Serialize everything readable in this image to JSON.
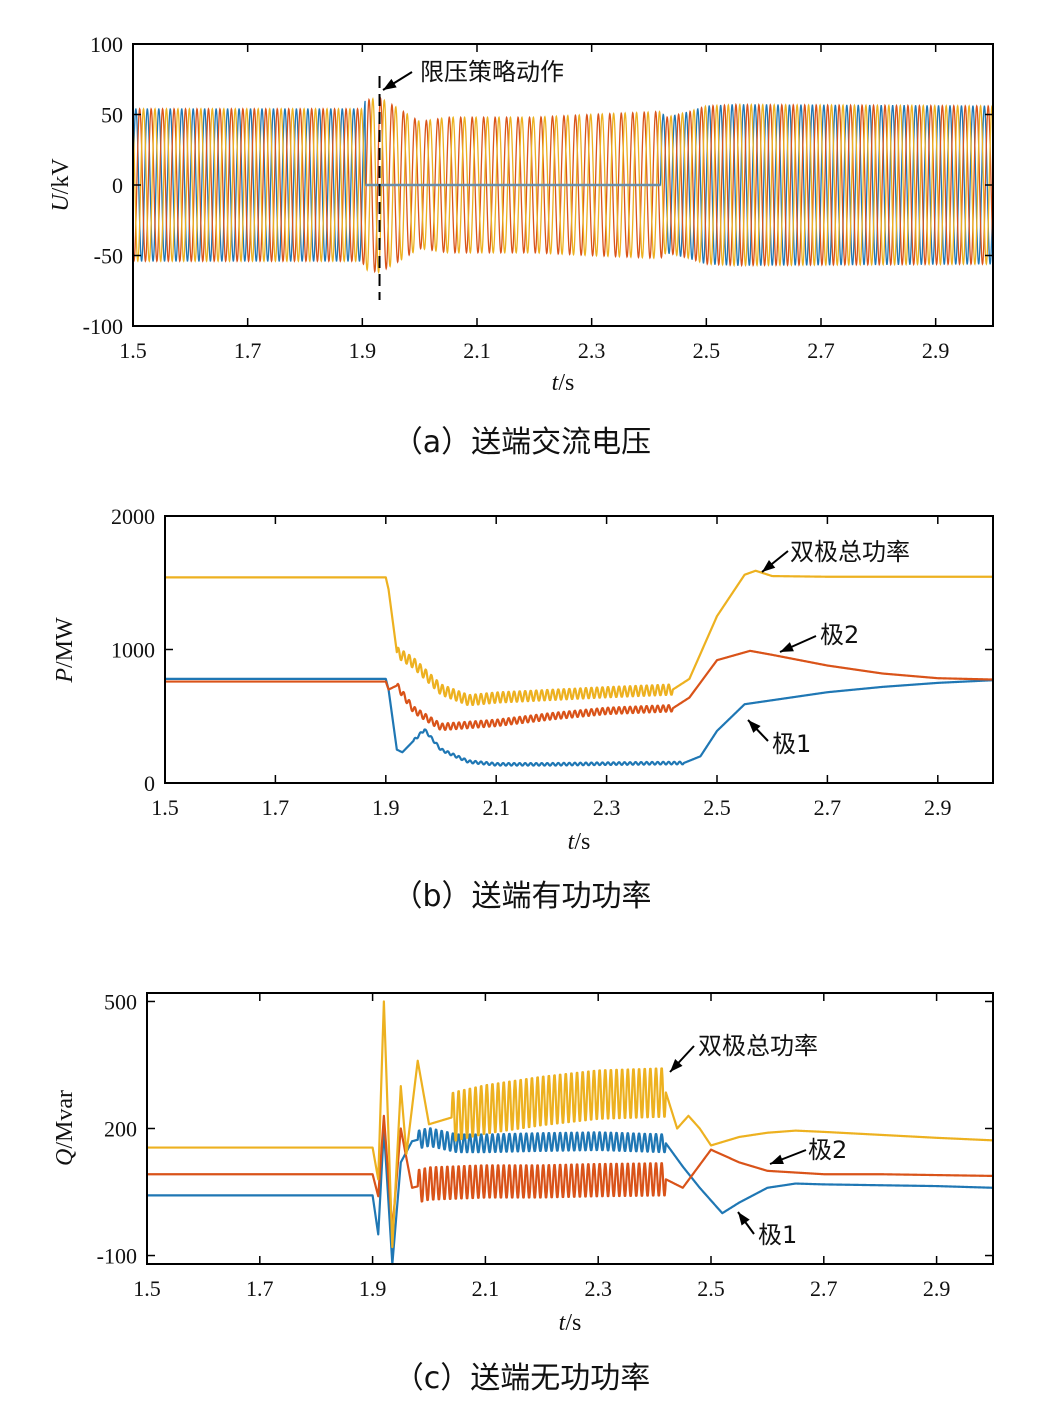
{
  "colors": {
    "pole1": "#1f77b4",
    "pole2": "#d95319",
    "total": "#edb120",
    "axis": "#000000"
  },
  "chart_data": [
    {
      "type": "line",
      "caption": "（a）送端交流电压",
      "ylabel_var": "U",
      "ylabel_unit": "/kV",
      "xlabel_var": "t",
      "xlabel_unit": "/s",
      "xlim": [
        1.5,
        3.0
      ],
      "ylim": [
        -100,
        100
      ],
      "xticks": [
        "1.5",
        "1.7",
        "1.9",
        "2.1",
        "2.3",
        "2.5",
        "2.7",
        "2.9"
      ],
      "xtick_values": [
        1.5,
        1.7,
        1.9,
        2.1,
        2.3,
        2.5,
        2.7,
        2.9
      ],
      "yticks": [
        "100",
        "50",
        "0",
        "-50",
        "-100"
      ],
      "ytick_values": [
        100,
        50,
        0,
        -50,
        -100
      ],
      "grid": false,
      "signal": "three-phase AC, 50 Hz",
      "envelope": {
        "t": [
          1.5,
          1.9,
          1.905,
          1.93,
          1.96,
          2.0,
          2.05,
          2.2,
          2.3,
          2.42,
          2.43,
          2.47,
          2.5,
          2.55,
          3.0
        ],
        "amplitude": [
          54,
          54,
          60,
          62,
          55,
          45,
          48,
          48,
          50,
          52,
          48,
          52,
          56,
          57,
          56
        ]
      },
      "blue_phase_amplitude_during_fault": 0,
      "blue_phase_fault_interval": [
        1.905,
        2.42
      ],
      "annotation": {
        "text": "限压策略动作",
        "t": 1.93
      }
    },
    {
      "type": "line",
      "caption": "（b）送端有功功率",
      "ylabel_var": "P",
      "ylabel_unit": "/MW",
      "xlabel_var": "t",
      "xlabel_unit": "/s",
      "xlim": [
        1.5,
        3.0
      ],
      "ylim": [
        0,
        2000
      ],
      "xticks": [
        "1.5",
        "1.7",
        "1.9",
        "2.1",
        "2.3",
        "2.5",
        "2.7",
        "2.9"
      ],
      "xtick_values": [
        1.5,
        1.7,
        1.9,
        2.1,
        2.3,
        2.5,
        2.7,
        2.9
      ],
      "yticks": [
        "2000",
        "1000",
        "0"
      ],
      "ytick_values": [
        2000,
        1000,
        0
      ],
      "grid": false,
      "series": [
        {
          "name": "双极总功率",
          "color_key": "total",
          "x": [
            1.5,
            1.9,
            1.905,
            1.92,
            1.95,
            2.0,
            2.05,
            2.1,
            2.2,
            2.3,
            2.42,
            2.45,
            2.5,
            2.55,
            2.57,
            2.6,
            2.7,
            3.0
          ],
          "y": [
            1540,
            1540,
            1450,
            980,
            900,
            700,
            620,
            640,
            660,
            680,
            700,
            780,
            1250,
            1560,
            1590,
            1550,
            1545,
            1545
          ],
          "ripple": 40,
          "ripple_interval": [
            1.92,
            2.42
          ]
        },
        {
          "name": "极2",
          "color_key": "pole2",
          "x": [
            1.5,
            1.9,
            1.905,
            1.92,
            1.95,
            2.0,
            2.1,
            2.2,
            2.3,
            2.42,
            2.45,
            2.5,
            2.56,
            2.6,
            2.7,
            2.8,
            2.9,
            3.0
          ],
          "y": [
            760,
            760,
            700,
            730,
            550,
            420,
            450,
            500,
            540,
            560,
            640,
            920,
            990,
            960,
            880,
            820,
            785,
            775
          ],
          "ripple": 25,
          "ripple_interval": [
            1.92,
            2.42
          ]
        },
        {
          "name": "极1",
          "color_key": "pole1",
          "x": [
            1.5,
            1.9,
            1.905,
            1.92,
            1.93,
            1.97,
            2.0,
            2.05,
            2.1,
            2.2,
            2.3,
            2.44,
            2.47,
            2.5,
            2.55,
            2.6,
            2.7,
            2.8,
            2.9,
            3.0
          ],
          "y": [
            780,
            780,
            700,
            250,
            230,
            400,
            250,
            160,
            140,
            140,
            145,
            150,
            200,
            390,
            590,
            620,
            680,
            720,
            750,
            770
          ],
          "ripple": 10,
          "ripple_interval": [
            1.95,
            2.44
          ]
        }
      ],
      "annotations": [
        {
          "text": "双极总功率",
          "series": "双极总功率",
          "t": 2.57
        },
        {
          "text": "极2",
          "series": "极2",
          "t": 2.58
        },
        {
          "text": "极1",
          "series": "极1",
          "t": 2.53
        }
      ]
    },
    {
      "type": "line",
      "caption": "（c）送端无功功率",
      "ylabel_var": "Q",
      "ylabel_unit": "/Mvar",
      "xlabel_var": "t",
      "xlabel_unit": "/s",
      "xlim": [
        1.5,
        3.0
      ],
      "ylim": [
        -120,
        520
      ],
      "xticks": [
        "1.5",
        "1.7",
        "1.9",
        "2.1",
        "2.3",
        "2.5",
        "2.7",
        "2.9"
      ],
      "xtick_values": [
        1.5,
        1.7,
        1.9,
        2.1,
        2.3,
        2.5,
        2.7,
        2.9
      ],
      "yticks": [
        "500",
        "200",
        "-100"
      ],
      "ytick_values": [
        500,
        200,
        -100
      ],
      "grid": false,
      "series": [
        {
          "name": "双极总功率",
          "color_key": "total",
          "x": [
            1.5,
            1.9,
            1.91,
            1.92,
            1.935,
            1.95,
            1.96,
            1.98,
            2.0,
            2.05,
            2.1,
            2.2,
            2.3,
            2.42,
            2.44,
            2.46,
            2.48,
            2.5,
            2.55,
            2.6,
            2.65,
            2.7,
            2.8,
            2.9,
            3.0
          ],
          "y": [
            155,
            155,
            80,
            500,
            -80,
            300,
            140,
            360,
            210,
            230,
            245,
            265,
            280,
            285,
            200,
            230,
            200,
            160,
            180,
            190,
            195,
            192,
            185,
            178,
            172
          ],
          "ripple": 60,
          "ripple_interval": [
            2.04,
            2.42
          ]
        },
        {
          "name": "极2",
          "color_key": "pole2",
          "x": [
            1.5,
            1.9,
            1.91,
            1.92,
            1.935,
            1.95,
            1.97,
            2.0,
            2.1,
            2.2,
            2.3,
            2.42,
            2.45,
            2.5,
            2.55,
            2.6,
            2.7,
            2.8,
            2.9,
            3.0
          ],
          "y": [
            92,
            92,
            40,
            230,
            -40,
            200,
            60,
            70,
            75,
            75,
            78,
            80,
            60,
            150,
            120,
            100,
            92,
            92,
            90,
            88
          ],
          "ripple": 40,
          "ripple_interval": [
            1.98,
            2.42
          ]
        },
        {
          "name": "极1",
          "color_key": "pole1",
          "x": [
            1.5,
            1.9,
            1.91,
            1.92,
            1.935,
            1.95,
            1.97,
            2.0,
            2.05,
            2.1,
            2.2,
            2.3,
            2.42,
            2.45,
            2.48,
            2.52,
            2.55,
            2.6,
            2.65,
            2.7,
            2.8,
            2.9,
            3.0
          ],
          "y": [
            42,
            42,
            -50,
            200,
            -120,
            120,
            170,
            180,
            165,
            165,
            168,
            170,
            165,
            110,
            60,
            0,
            25,
            60,
            70,
            68,
            66,
            64,
            60
          ],
          "ripple": 22,
          "ripple_interval": [
            1.98,
            2.42
          ]
        }
      ],
      "annotations": [
        {
          "text": "双极总功率",
          "series": "双极总功率",
          "t": 2.42
        },
        {
          "text": "极2",
          "series": "极2",
          "t": 2.59
        },
        {
          "text": "极1",
          "series": "极1",
          "t": 2.55
        }
      ]
    }
  ]
}
